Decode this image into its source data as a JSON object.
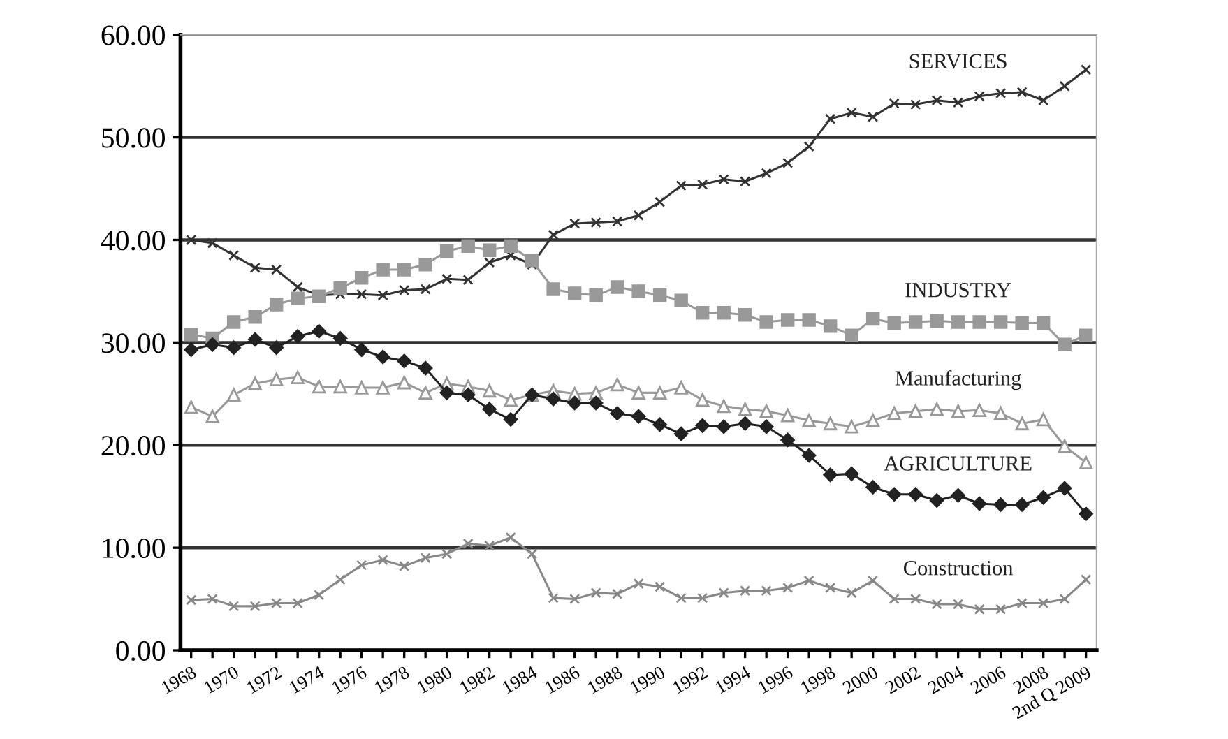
{
  "chart_data": {
    "type": "line",
    "categories": [
      "1968",
      null,
      "1970",
      null,
      "1972",
      null,
      "1974",
      null,
      "1976",
      null,
      "1978",
      null,
      "1980",
      null,
      "1982",
      null,
      "1984",
      null,
      "1986",
      null,
      "1988",
      null,
      "1990",
      null,
      "1992",
      null,
      "1994",
      null,
      "1996",
      null,
      "1998",
      null,
      "2000",
      null,
      "2002",
      null,
      "2004",
      null,
      "2006",
      null,
      "2008",
      null,
      "2nd Q 2009"
    ],
    "ylim": [
      0,
      60
    ],
    "yticks": [
      {
        "value": 0,
        "label": "0.00"
      },
      {
        "value": 10,
        "label": "10.00"
      },
      {
        "value": 20,
        "label": "20.00"
      },
      {
        "value": 30,
        "label": "30.00"
      },
      {
        "value": 40,
        "label": "40.00"
      },
      {
        "value": 50,
        "label": "50.00"
      },
      {
        "value": 60,
        "label": "60.00"
      }
    ],
    "grid": "y",
    "legend": false,
    "series": [
      {
        "name": "SERVICES",
        "color": "#333333",
        "marker": "cross",
        "values": [
          40.0,
          39.7,
          38.5,
          37.3,
          37.1,
          35.4,
          34.6,
          34.7,
          34.7,
          34.6,
          35.1,
          35.2,
          36.2,
          36.1,
          37.8,
          38.5,
          37.6,
          40.5,
          41.6,
          41.7,
          41.8,
          42.4,
          43.7,
          45.3,
          45.4,
          45.9,
          45.7,
          46.5,
          47.5,
          49.1,
          51.8,
          52.4,
          52.0,
          53.3,
          53.2,
          53.6,
          53.4,
          54.0,
          54.3,
          54.4,
          53.6,
          55.0,
          56.6
        ]
      },
      {
        "name": "INDUSTRY",
        "color": "#999999",
        "marker": "square",
        "values": [
          30.8,
          30.4,
          32.0,
          32.5,
          33.7,
          34.3,
          34.5,
          35.3,
          36.3,
          37.1,
          37.1,
          37.6,
          38.9,
          39.4,
          39.0,
          39.4,
          38.0,
          35.2,
          34.8,
          34.6,
          35.4,
          35.0,
          34.6,
          34.1,
          32.9,
          32.9,
          32.7,
          32.0,
          32.2,
          32.2,
          31.6,
          30.7,
          32.3,
          31.9,
          32.0,
          32.1,
          32.0,
          32.0,
          32.0,
          31.9,
          31.9,
          29.8,
          30.7
        ]
      },
      {
        "name": "Manufacturing",
        "color": "#999999",
        "marker": "triangle",
        "values": [
          23.7,
          22.8,
          24.9,
          26.0,
          26.4,
          26.6,
          25.7,
          25.7,
          25.6,
          25.6,
          26.1,
          25.1,
          26.0,
          25.7,
          25.3,
          24.4,
          24.9,
          25.3,
          25.0,
          25.1,
          25.9,
          25.1,
          25.1,
          25.6,
          24.4,
          23.8,
          23.5,
          23.3,
          22.9,
          22.4,
          22.1,
          21.8,
          22.4,
          23.1,
          23.3,
          23.5,
          23.3,
          23.4,
          23.1,
          22.1,
          22.5,
          19.9,
          18.3
        ]
      },
      {
        "name": "AGRICULTURE",
        "color": "#222222",
        "marker": "diamond",
        "values": [
          29.3,
          29.8,
          29.5,
          30.3,
          29.5,
          30.6,
          31.1,
          30.4,
          29.3,
          28.6,
          28.2,
          27.5,
          25.1,
          24.9,
          23.5,
          22.5,
          24.9,
          24.5,
          24.1,
          24.1,
          23.1,
          22.8,
          22.0,
          21.1,
          21.9,
          21.8,
          22.1,
          21.8,
          20.5,
          19.0,
          17.1,
          17.2,
          15.9,
          15.2,
          15.2,
          14.6,
          15.1,
          14.3,
          14.2,
          14.2,
          14.9,
          15.8,
          13.3
        ]
      },
      {
        "name": "Construction",
        "color": "#888888",
        "marker": "cross",
        "values": [
          4.9,
          5.0,
          4.3,
          4.3,
          4.6,
          4.6,
          5.4,
          6.9,
          8.3,
          8.8,
          8.2,
          9.0,
          9.4,
          10.4,
          10.2,
          11.0,
          9.4,
          5.1,
          5.0,
          5.6,
          5.5,
          6.5,
          6.2,
          5.1,
          5.1,
          5.6,
          5.8,
          5.8,
          6.1,
          6.8,
          6.1,
          5.6,
          6.8,
          5.0,
          5.0,
          4.5,
          4.5,
          4.0,
          4.0,
          4.6,
          4.6,
          5.0,
          6.9
        ]
      }
    ]
  }
}
